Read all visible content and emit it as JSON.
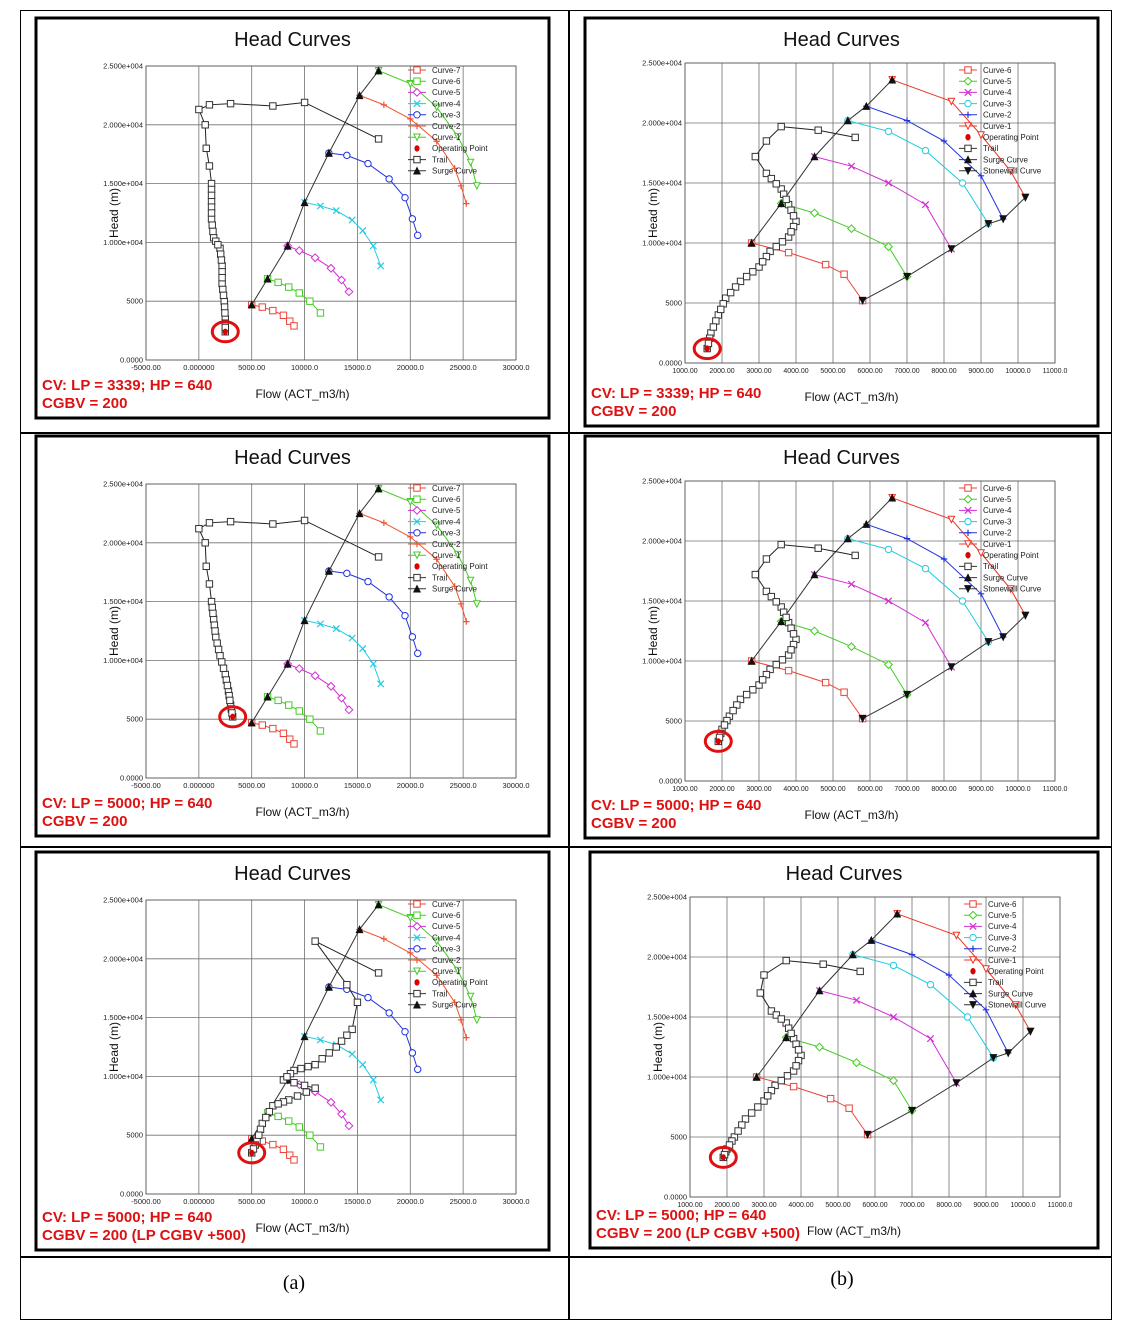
{
  "figure": {
    "captions": [
      "(a)",
      "(b)"
    ]
  },
  "colors": {
    "Curve-7": "#e8443a",
    "Curve-6": "#e8443a",
    "Curve-5": "#44cc22",
    "Curve-4": "#d62bd6",
    "Curve-3": "#22cce0",
    "Curve-2": "#2233dd",
    "Curve-1": "#ee3322",
    "Trail": "#222222",
    "Surge Curve": "#222222",
    "Stonewall Curve": "#222222",
    "Operating Point": "#dd0000",
    "annotation": "#dd1111",
    "grid": "#707070"
  },
  "chart_data": [
    {
      "panel": "a-1",
      "type": "line",
      "title": "Head Curves",
      "xlabel": "Flow (ACT_m3/h)",
      "ylabel": "Head (m)",
      "xlim": [
        -5000,
        30000
      ],
      "ylim": [
        0,
        25000
      ],
      "xticks": [
        "-5000.00",
        "0.000000",
        "5000.00",
        "10000.0",
        "15000.0",
        "20000.0",
        "25000.0",
        "30000.0"
      ],
      "yticks": [
        "0.0000",
        "5000",
        "1.000e+004",
        "1.500e+004",
        "2.000e+004",
        "2.500e+004"
      ],
      "annotation": [
        "CV: LP = 3339; HP = 640",
        "CGBV = 200"
      ],
      "legend": [
        "Curve-7",
        "Curve-6",
        "Curve-5",
        "Curve-4",
        "Curve-3",
        "Curve-2",
        "Curve-1",
        "Operating Point",
        "Trail",
        "Surge Curve"
      ],
      "variant": "a",
      "trail_key": "a1",
      "op_point": [
        2500,
        2400
      ]
    },
    {
      "panel": "b-1",
      "type": "line",
      "title": "Head Curves",
      "xlabel": "Flow (ACT_m3/h)",
      "ylabel": "Head (m)",
      "xlim": [
        1000,
        11000
      ],
      "ylim": [
        0,
        25000
      ],
      "xticks": [
        "1000.00",
        "2000.00",
        "3000.00",
        "4000.00",
        "5000.00",
        "6000.00",
        "7000.00",
        "8000.00",
        "9000.00",
        "10000.0",
        "11000.0"
      ],
      "yticks": [
        "0.0000",
        "5000",
        "1.000e+004",
        "1.500e+004",
        "2.000e+004",
        "2.500e+004"
      ],
      "annotation": [
        "CV: LP = 3339; HP = 640",
        "CGBV = 200"
      ],
      "legend": [
        "Curve-6",
        "Curve-5",
        "Curve-4",
        "Curve-3",
        "Curve-2",
        "Curve-1",
        "Operating Point",
        "Trail",
        "Surge Curve",
        "Stonewall Curve"
      ],
      "variant": "b",
      "trail_key": "b1",
      "op_point": [
        1600,
        1200
      ]
    },
    {
      "panel": "a-2",
      "type": "line",
      "title": "Head Curves",
      "xlabel": "Flow (ACT_m3/h)",
      "ylabel": "Head (m)",
      "xlim": [
        -5000,
        30000
      ],
      "ylim": [
        0,
        25000
      ],
      "xticks": [
        "-5000.00",
        "0.000000",
        "5000.00",
        "10000.0",
        "15000.0",
        "20000.0",
        "25000.0",
        "30000.0"
      ],
      "yticks": [
        "0.0000",
        "5000",
        "1.000e+004",
        "1.500e+004",
        "2.000e+004",
        "2.500e+004"
      ],
      "annotation": [
        "CV: LP = 5000; HP = 640",
        "CGBV = 200"
      ],
      "legend": [
        "Curve-7",
        "Curve-6",
        "Curve-5",
        "Curve-4",
        "Curve-3",
        "Curve-2",
        "Curve-1",
        "Operating Point",
        "Trail",
        "Surge Curve"
      ],
      "variant": "a",
      "trail_key": "a2",
      "op_point": [
        3200,
        5200
      ]
    },
    {
      "panel": "b-2",
      "type": "line",
      "title": "Head Curves",
      "xlabel": "Flow (ACT_m3/h)",
      "ylabel": "Head (m)",
      "xlim": [
        1000,
        11000
      ],
      "ylim": [
        0,
        25000
      ],
      "xticks": [
        "1000.00",
        "2000.00",
        "3000.00",
        "4000.00",
        "5000.00",
        "6000.00",
        "7000.00",
        "8000.00",
        "9000.00",
        "10000.0",
        "11000.0"
      ],
      "yticks": [
        "0.0000",
        "5000",
        "1.000e+004",
        "1.500e+004",
        "2.000e+004",
        "2.500e+004"
      ],
      "annotation": [
        "CV: LP = 5000; HP = 640",
        "CGBV = 200"
      ],
      "legend": [
        "Curve-6",
        "Curve-5",
        "Curve-4",
        "Curve-3",
        "Curve-2",
        "Curve-1",
        "Operating Point",
        "Trail",
        "Surge Curve",
        "Stonewall Curve"
      ],
      "variant": "b",
      "trail_key": "b2",
      "op_point": [
        1900,
        3300
      ]
    },
    {
      "panel": "a-3",
      "type": "line",
      "title": "Head Curves",
      "xlabel": "Flow (ACT_m3/h)",
      "ylabel": "Head (m)",
      "xlim": [
        -5000,
        30000
      ],
      "ylim": [
        0,
        25000
      ],
      "xticks": [
        "-5000.00",
        "0.000000",
        "5000.00",
        "10000.0",
        "15000.0",
        "20000.0",
        "25000.0",
        "30000.0"
      ],
      "yticks": [
        "0.0000",
        "5000",
        "1.000e+004",
        "1.500e+004",
        "2.000e+004",
        "2.500e+004"
      ],
      "annotation": [
        "CV: LP = 5000; HP = 640",
        "CGBV = 200 (LP CGBV +500)"
      ],
      "legend": [
        "Curve-7",
        "Curve-6",
        "Curve-5",
        "Curve-4",
        "Curve-3",
        "Curve-2",
        "Curve-1",
        "Operating Point",
        "Trail",
        "Surge Curve"
      ],
      "variant": "a",
      "trail_key": "a3",
      "op_point": [
        5000,
        3500
      ]
    },
    {
      "panel": "b-3",
      "type": "line",
      "title": "Head Curves",
      "xlabel": "Flow (ACT_m3/h)",
      "ylabel": "Head (m)",
      "xlim": [
        1000,
        11000
      ],
      "ylim": [
        0,
        25000
      ],
      "xticks": [
        "1000.00",
        "2000.00",
        "3000.00",
        "4000.00",
        "5000.00",
        "6000.00",
        "7000.00",
        "8000.00",
        "9000.00",
        "10000.0",
        "11000.0"
      ],
      "yticks": [
        "0.0000",
        "5000",
        "1.000e+004",
        "1.500e+004",
        "2.000e+004",
        "2.500e+004"
      ],
      "annotation": [
        "CV: LP = 5000; HP = 640",
        "CGBV = 200 (LP CGBV +500)"
      ],
      "legend": [
        "Curve-6",
        "Curve-5",
        "Curve-4",
        "Curve-3",
        "Curve-2",
        "Curve-1",
        "Operating Point",
        "Trail",
        "Surge Curve",
        "Stonewall Curve"
      ],
      "variant": "b",
      "trail_key": "b3",
      "op_point": [
        1900,
        3300
      ]
    }
  ],
  "series_a": {
    "Curve-7": [
      [
        5000,
        4700
      ],
      [
        6000,
        4500
      ],
      [
        7000,
        4200
      ],
      [
        8000,
        3800
      ],
      [
        8600,
        3300
      ],
      [
        9000,
        2900
      ]
    ],
    "Curve-6": [
      [
        6500,
        6900
      ],
      [
        7500,
        6600
      ],
      [
        8500,
        6200
      ],
      [
        9500,
        5700
      ],
      [
        10500,
        5000
      ],
      [
        11500,
        4000
      ]
    ],
    "Curve-5": [
      [
        8400,
        9700
      ],
      [
        9500,
        9300
      ],
      [
        11000,
        8700
      ],
      [
        12500,
        7800
      ],
      [
        13500,
        6800
      ],
      [
        14200,
        5800
      ]
    ],
    "Curve-4": [
      [
        10000,
        13400
      ],
      [
        11500,
        13100
      ],
      [
        13000,
        12700
      ],
      [
        14500,
        11900
      ],
      [
        15500,
        11000
      ],
      [
        16500,
        9700
      ],
      [
        17200,
        8000
      ]
    ],
    "Curve-3": [
      [
        12300,
        17600
      ],
      [
        14000,
        17400
      ],
      [
        16000,
        16700
      ],
      [
        18000,
        15400
      ],
      [
        19500,
        13800
      ],
      [
        20200,
        12000
      ],
      [
        20700,
        10600
      ]
    ],
    "Curve-2": [
      [
        15200,
        22500
      ],
      [
        17500,
        21700
      ],
      [
        20000,
        20500
      ],
      [
        22500,
        18600
      ],
      [
        24200,
        16300
      ],
      [
        24800,
        14800
      ],
      [
        25300,
        13300
      ]
    ],
    "Curve-1": [
      [
        17000,
        24600
      ],
      [
        20000,
        23500
      ],
      [
        22500,
        21500
      ],
      [
        24500,
        19000
      ],
      [
        25700,
        16800
      ],
      [
        26300,
        14800
      ]
    ],
    "Surge Curve": [
      [
        5000,
        4700
      ],
      [
        6500,
        6900
      ],
      [
        8400,
        9700
      ],
      [
        10000,
        13400
      ],
      [
        12300,
        17600
      ],
      [
        15200,
        22500
      ],
      [
        17000,
        24600
      ]
    ]
  },
  "series_b": {
    "Curve-6": [
      [
        2800,
        10000
      ],
      [
        3800,
        9200
      ],
      [
        4800,
        8200
      ],
      [
        5300,
        7400
      ],
      [
        5800,
        5200
      ]
    ],
    "Curve-5": [
      [
        3600,
        13300
      ],
      [
        4500,
        12500
      ],
      [
        5500,
        11200
      ],
      [
        6500,
        9700
      ],
      [
        7000,
        7200
      ]
    ],
    "Curve-4": [
      [
        4500,
        17200
      ],
      [
        5500,
        16400
      ],
      [
        6500,
        15000
      ],
      [
        7500,
        13200
      ],
      [
        8200,
        9500
      ]
    ],
    "Curve-3": [
      [
        5400,
        20200
      ],
      [
        6500,
        19300
      ],
      [
        7500,
        17700
      ],
      [
        8500,
        15000
      ],
      [
        9200,
        11600
      ]
    ],
    "Curve-2": [
      [
        5900,
        21400
      ],
      [
        7000,
        20200
      ],
      [
        8000,
        18500
      ],
      [
        9000,
        15600
      ],
      [
        9600,
        12000
      ]
    ],
    "Curve-1": [
      [
        6600,
        23600
      ],
      [
        8200,
        21800
      ],
      [
        9000,
        19000
      ],
      [
        9800,
        16000
      ],
      [
        10200,
        13800
      ]
    ],
    "Surge Curve": [
      [
        2800,
        10000
      ],
      [
        3600,
        13300
      ],
      [
        4500,
        17200
      ],
      [
        5400,
        20200
      ],
      [
        5900,
        21400
      ],
      [
        6600,
        23600
      ]
    ],
    "Stonewall Curve": [
      [
        5800,
        5200
      ],
      [
        7000,
        7200
      ],
      [
        8200,
        9500
      ],
      [
        9200,
        11600
      ],
      [
        9600,
        12000
      ],
      [
        10200,
        13800
      ]
    ]
  },
  "trails": {
    "a1": [
      [
        17000,
        18800
      ],
      [
        10000,
        21900
      ],
      [
        7000,
        21600
      ],
      [
        3000,
        21800
      ],
      [
        1000,
        21700
      ],
      [
        0,
        21300
      ],
      [
        600,
        20000
      ],
      [
        700,
        18000
      ],
      [
        1000,
        16500
      ],
      [
        1200,
        15000
      ],
      [
        1200,
        13500
      ],
      [
        1200,
        12000
      ],
      [
        1400,
        10400
      ],
      [
        2000,
        9500
      ],
      [
        2200,
        8000
      ],
      [
        2200,
        6500
      ],
      [
        2400,
        5000
      ],
      [
        2500,
        3500
      ],
      [
        2500,
        2400
      ]
    ],
    "b1": [
      [
        5600,
        18800
      ],
      [
        4600,
        19400
      ],
      [
        3600,
        19700
      ],
      [
        3200,
        18500
      ],
      [
        2900,
        17200
      ],
      [
        3200,
        15800
      ],
      [
        3600,
        14500
      ],
      [
        3800,
        13200
      ],
      [
        4000,
        11800
      ],
      [
        3800,
        10500
      ],
      [
        3300,
        9300
      ],
      [
        3000,
        8000
      ],
      [
        2500,
        6800
      ],
      [
        2100,
        5400
      ],
      [
        1900,
        4000
      ],
      [
        1700,
        2500
      ],
      [
        1600,
        1200
      ]
    ],
    "a2": [
      [
        17000,
        18800
      ],
      [
        10000,
        21900
      ],
      [
        7000,
        21600
      ],
      [
        3000,
        21800
      ],
      [
        1000,
        21700
      ],
      [
        0,
        21200
      ],
      [
        600,
        20000
      ],
      [
        700,
        18000
      ],
      [
        1000,
        16500
      ],
      [
        1200,
        15000
      ],
      [
        1400,
        13500
      ],
      [
        1600,
        12000
      ],
      [
        2000,
        10400
      ],
      [
        2500,
        8800
      ],
      [
        2800,
        7400
      ],
      [
        3000,
        6200
      ],
      [
        3200,
        5200
      ]
    ],
    "b2": [
      [
        5600,
        18800
      ],
      [
        4600,
        19400
      ],
      [
        3600,
        19700
      ],
      [
        3200,
        18500
      ],
      [
        2900,
        17200
      ],
      [
        3200,
        15800
      ],
      [
        3600,
        14500
      ],
      [
        3800,
        13200
      ],
      [
        4000,
        11800
      ],
      [
        3800,
        10500
      ],
      [
        3300,
        9300
      ],
      [
        3000,
        8000
      ],
      [
        2500,
        6800
      ],
      [
        2200,
        5400
      ],
      [
        2000,
        4300
      ],
      [
        1900,
        3300
      ]
    ],
    "a3": [
      [
        17000,
        18800
      ],
      [
        11000,
        21500
      ],
      [
        14000,
        17800
      ],
      [
        15000,
        16300
      ],
      [
        14500,
        14000
      ],
      [
        13000,
        12500
      ],
      [
        11000,
        11000
      ],
      [
        9000,
        10500
      ],
      [
        8000,
        9700
      ],
      [
        11000,
        9000
      ],
      [
        8500,
        8000
      ],
      [
        7000,
        7500
      ],
      [
        6000,
        6000
      ],
      [
        5500,
        4500
      ],
      [
        5000,
        3500
      ]
    ],
    "b3": [
      [
        5600,
        18800
      ],
      [
        4600,
        19400
      ],
      [
        3600,
        19700
      ],
      [
        3000,
        18500
      ],
      [
        2900,
        17000
      ],
      [
        3200,
        15500
      ],
      [
        3600,
        14500
      ],
      [
        3800,
        13200
      ],
      [
        4000,
        11800
      ],
      [
        3800,
        10500
      ],
      [
        3300,
        9300
      ],
      [
        3000,
        8000
      ],
      [
        2500,
        6500
      ],
      [
        2200,
        5000
      ],
      [
        2000,
        4000
      ],
      [
        1900,
        3300
      ]
    ]
  }
}
